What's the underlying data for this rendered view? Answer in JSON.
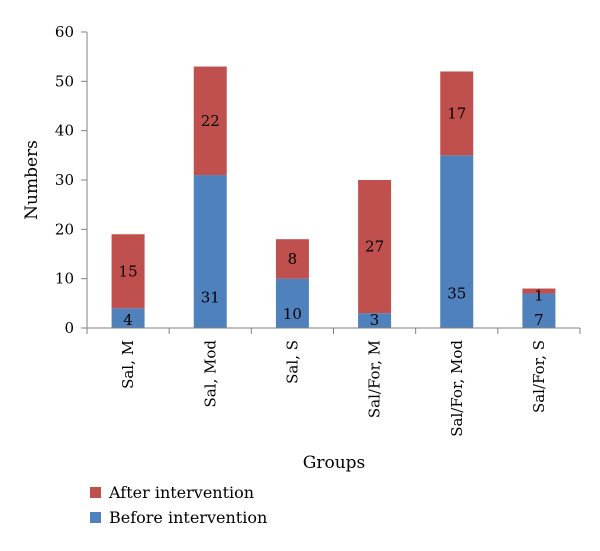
{
  "chart_data": {
    "type": "bar",
    "stacked": true,
    "title": "",
    "xlabel": "Groups",
    "ylabel": "Numbers",
    "ylim": [
      0,
      60
    ],
    "yticks": [
      0,
      10,
      20,
      30,
      40,
      50,
      60
    ],
    "grid": false,
    "legend_position": "bottom-left",
    "categories": [
      "Sal, M",
      "Sal, Mod",
      "Sal, S",
      "Sal/For, M",
      "Sal/For, Mod",
      "Sal/For, S"
    ],
    "series": [
      {
        "name": "Before intervention",
        "color": "#4f81bd",
        "values": [
          4,
          31,
          10,
          3,
          35,
          7
        ],
        "labels": [
          "4",
          "31",
          "10",
          "3",
          "35",
          "7"
        ]
      },
      {
        "name": "After intervention",
        "color": "#c0504d",
        "values": [
          15,
          22,
          8,
          27,
          17,
          1
        ],
        "labels": [
          "15",
          "22",
          "8",
          "27",
          "17",
          "1"
        ]
      }
    ],
    "legend_order": [
      1,
      0
    ]
  }
}
